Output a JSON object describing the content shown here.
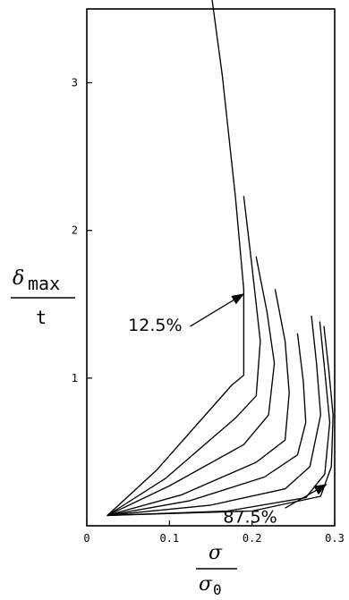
{
  "chart_data": {
    "type": "line",
    "ylabel": {
      "numerator_symbol": "δ",
      "numerator_subscript": "max",
      "denominator": "t"
    },
    "xlabel": {
      "numerator_symbol": "σ",
      "denominator_symbol": "σ",
      "denominator_subscript": "0"
    },
    "xlim": [
      0,
      0.3
    ],
    "ylim": [
      0,
      3.5
    ],
    "x_ticks": [
      {
        "value": 0,
        "label": "0"
      },
      {
        "value": 0.1,
        "label": "0.1"
      },
      {
        "value": 0.2,
        "label": "0.2"
      },
      {
        "value": 0.3,
        "label": "0.3"
      }
    ],
    "y_ticks": [
      {
        "value": 1,
        "label": "1"
      },
      {
        "value": 2,
        "label": "2"
      },
      {
        "value": 3,
        "label": "3"
      }
    ],
    "grid": false,
    "series": [
      {
        "points": [
          [
            0.025,
            0.07
          ],
          [
            0.085,
            0.38
          ],
          [
            0.175,
            0.95
          ],
          [
            0.19,
            1.02
          ],
          [
            0.19,
            1.6
          ],
          [
            0.18,
            2.22
          ],
          [
            0.164,
            3.05
          ],
          [
            0.15,
            3.63
          ]
        ]
      },
      {
        "points": [
          [
            0.025,
            0.07
          ],
          [
            0.095,
            0.32
          ],
          [
            0.18,
            0.73
          ],
          [
            0.205,
            0.88
          ],
          [
            0.21,
            1.25
          ],
          [
            0.2,
            1.75
          ],
          [
            0.19,
            2.23
          ]
        ]
      },
      {
        "points": [
          [
            0.025,
            0.07
          ],
          [
            0.1,
            0.27
          ],
          [
            0.19,
            0.55
          ],
          [
            0.22,
            0.75
          ],
          [
            0.227,
            1.1
          ],
          [
            0.218,
            1.45
          ],
          [
            0.205,
            1.82
          ]
        ]
      },
      {
        "points": [
          [
            0.025,
            0.07
          ],
          [
            0.115,
            0.21
          ],
          [
            0.205,
            0.43
          ],
          [
            0.24,
            0.58
          ],
          [
            0.245,
            0.9
          ],
          [
            0.24,
            1.25
          ],
          [
            0.228,
            1.6
          ]
        ]
      },
      {
        "points": [
          [
            0.025,
            0.07
          ],
          [
            0.125,
            0.17
          ],
          [
            0.215,
            0.33
          ],
          [
            0.255,
            0.48
          ],
          [
            0.265,
            0.7
          ],
          [
            0.262,
            0.98
          ],
          [
            0.255,
            1.3
          ]
        ]
      },
      {
        "points": [
          [
            0.025,
            0.07
          ],
          [
            0.15,
            0.14
          ],
          [
            0.24,
            0.25
          ],
          [
            0.27,
            0.4
          ],
          [
            0.283,
            0.75
          ],
          [
            0.278,
            1.1
          ],
          [
            0.272,
            1.42
          ]
        ]
      },
      {
        "points": [
          [
            0.025,
            0.07
          ],
          [
            0.17,
            0.1
          ],
          [
            0.265,
            0.19
          ],
          [
            0.288,
            0.35
          ],
          [
            0.294,
            0.7
          ],
          [
            0.288,
            1.05
          ],
          [
            0.282,
            1.38
          ]
        ]
      },
      {
        "points": [
          [
            0.025,
            0.07
          ],
          [
            0.2,
            0.1
          ],
          [
            0.283,
            0.2
          ],
          [
            0.296,
            0.4
          ],
          [
            0.298,
            0.75
          ],
          [
            0.293,
            1.05
          ],
          [
            0.287,
            1.35
          ]
        ]
      }
    ],
    "annotations": [
      {
        "text": "12.5%",
        "text_at": [
          0.05,
          1.32
        ],
        "arrow_from": [
          0.125,
          1.35
        ],
        "arrow_to": [
          0.19,
          1.57
        ]
      },
      {
        "text": "87.5%",
        "text_at": [
          0.165,
          0.02
        ],
        "arrow_from": [
          0.24,
          0.12
        ],
        "arrow_to": [
          0.29,
          0.28
        ]
      }
    ]
  }
}
